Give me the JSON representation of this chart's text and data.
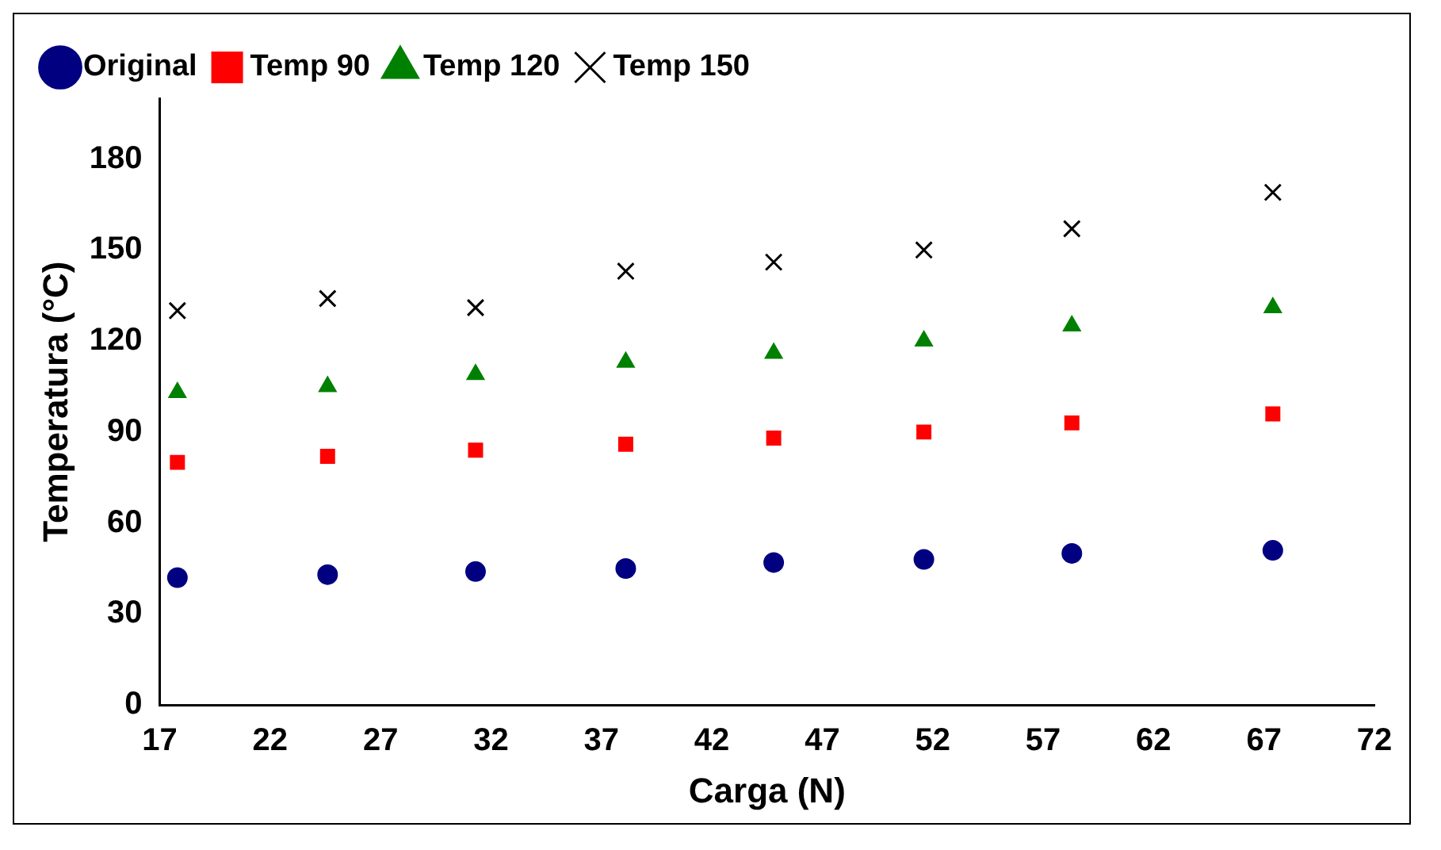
{
  "chart_data": {
    "type": "scatter",
    "xlabel": "Carga (N)",
    "ylabel": "Temperatura (°C)",
    "xlim": [
      17,
      72
    ],
    "xticks": [
      17,
      22,
      27,
      32,
      37,
      42,
      47,
      52,
      57,
      62,
      67,
      72
    ],
    "ylim": [
      0,
      200
    ],
    "yticks": [
      0,
      30,
      60,
      90,
      120,
      150,
      180
    ],
    "grid": false,
    "legend": "top left",
    "x": [
      17.8,
      24.6,
      31.3,
      38.1,
      44.8,
      51.6,
      58.3,
      67.4
    ],
    "series": [
      {
        "name": "Original",
        "color": "#000080",
        "marker": "circle",
        "values": [
          42,
          43,
          44,
          45,
          47,
          48,
          50,
          51
        ]
      },
      {
        "name": "Temp 90",
        "color": "#ff0000",
        "marker": "square",
        "values": [
          80,
          82,
          84,
          86,
          88,
          90,
          93,
          96
        ]
      },
      {
        "name": "Temp 120",
        "color": "#008000",
        "marker": "triangle",
        "values": [
          103,
          105,
          109,
          113,
          116,
          120,
          125,
          131
        ]
      },
      {
        "name": "Temp 150",
        "color": "#000000",
        "marker": "cross",
        "values": [
          130,
          134,
          131,
          143,
          146,
          150,
          157,
          169
        ]
      }
    ]
  }
}
